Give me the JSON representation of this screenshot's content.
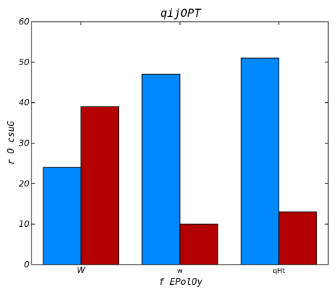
{
  "chart_data": {
    "type": "bar",
    "title": "qijOPT",
    "xlabel": "f EPolOy",
    "ylabel": "r O csuG",
    "categories": [
      "W",
      "w",
      "qHt"
    ],
    "series": [
      {
        "values": [
          24,
          47,
          51
        ]
      },
      {
        "values": [
          39,
          10,
          13
        ]
      }
    ],
    "ylim": [
      0,
      60
    ],
    "yticks": [
      0,
      10,
      20,
      30,
      40,
      50,
      60
    ],
    "grid": false,
    "legend": "none",
    "colors": {
      "series_0": "#0088ff",
      "series_1": "#b30000",
      "axes": "#000000"
    }
  }
}
